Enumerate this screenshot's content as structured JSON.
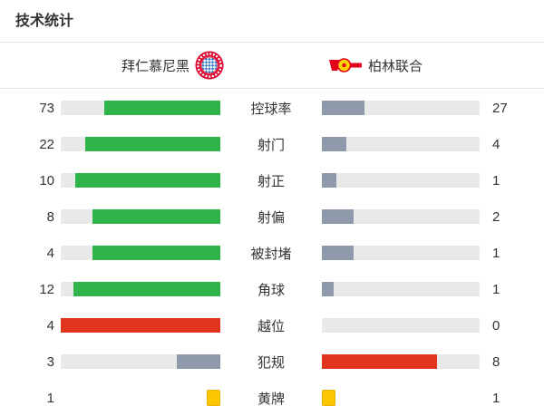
{
  "title": "技术统计",
  "header": {
    "home_team": "拜仁慕尼黑",
    "away_team": "柏林联合"
  },
  "colors": {
    "green": "#2eb44a",
    "red": "#e0341f",
    "gray_blue": "#8e9aab",
    "track": "#e9e9e9",
    "yellow_card": "#fcc600",
    "text": "#333333",
    "divider": "#e8e8e8",
    "bayern_red": "#dc052d",
    "bayern_blue": "#3f7fc1",
    "union_red": "#e2001a",
    "union_yellow": "#ffd500"
  },
  "stats": [
    {
      "label": "控球率",
      "home": 73,
      "away": 27,
      "home_color": "green",
      "away_color": "gray_blue",
      "type": "bar"
    },
    {
      "label": "射门",
      "home": 22,
      "away": 4,
      "home_color": "green",
      "away_color": "gray_blue",
      "type": "bar"
    },
    {
      "label": "射正",
      "home": 10,
      "away": 1,
      "home_color": "green",
      "away_color": "gray_blue",
      "type": "bar"
    },
    {
      "label": "射偏",
      "home": 8,
      "away": 2,
      "home_color": "green",
      "away_color": "gray_blue",
      "type": "bar"
    },
    {
      "label": "被封堵",
      "home": 4,
      "away": 1,
      "home_color": "green",
      "away_color": "gray_blue",
      "type": "bar"
    },
    {
      "label": "角球",
      "home": 12,
      "away": 1,
      "home_color": "green",
      "away_color": "gray_blue",
      "type": "bar"
    },
    {
      "label": "越位",
      "home": 4,
      "away": 0,
      "home_color": "red",
      "away_color": "gray_blue",
      "type": "bar"
    },
    {
      "label": "犯规",
      "home": 3,
      "away": 8,
      "home_color": "gray_blue",
      "away_color": "red",
      "type": "bar"
    },
    {
      "label": "黄牌",
      "home": 1,
      "away": 1,
      "home_color": "yellow_card",
      "away_color": "yellow_card",
      "type": "card"
    }
  ],
  "chart_data": {
    "type": "bar",
    "title": "技术统计",
    "orientation": "horizontal-paired",
    "categories": [
      "控球率",
      "射门",
      "射正",
      "射偏",
      "被封堵",
      "角球",
      "越位",
      "犯规",
      "黄牌"
    ],
    "series": [
      {
        "name": "拜仁慕尼黑",
        "values": [
          73,
          22,
          10,
          8,
          4,
          12,
          4,
          3,
          1
        ]
      },
      {
        "name": "柏林联合",
        "values": [
          27,
          4,
          1,
          2,
          1,
          1,
          0,
          8,
          1
        ]
      }
    ],
    "notes": "每行左右条形按该项两队数值占和的比例填充；领先方绿色(负面项红色)，落后方灰蓝色；黄牌行以黄牌方块表示"
  }
}
